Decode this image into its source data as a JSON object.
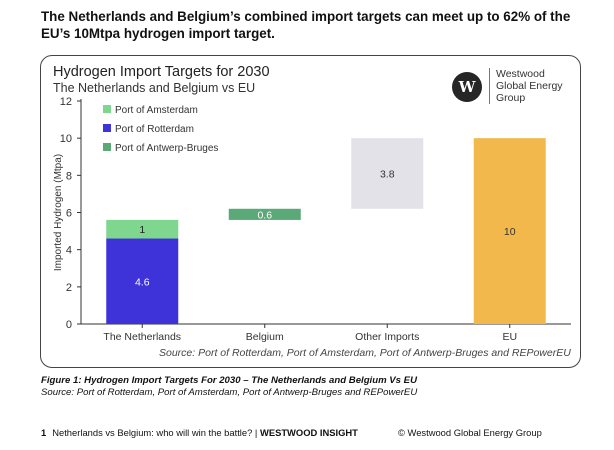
{
  "headline": "The Netherlands and Belgium’s combined import targets can meet up to 62% of the EU’s 10Mtpa hydrogen import target.",
  "brand": {
    "logo_letter": "W",
    "name_line1": "Westwood",
    "name_line2": "Global Energy",
    "name_line3": "Group"
  },
  "chart_data": {
    "type": "bar",
    "stacked": true,
    "title": "Hydrogen Import Targets for 2030",
    "subtitle": "The Netherlands and Belgium vs EU",
    "ylabel": "Imported Hydrogen (Mtpa)",
    "ylim": [
      0,
      12
    ],
    "yticks": [
      0,
      2,
      4,
      6,
      8,
      10,
      12
    ],
    "categories": [
      "The Netherlands",
      "Belgium",
      "Other Imports",
      "EU"
    ],
    "legend_position": "top-left",
    "legend": [
      {
        "label": "Port of Amsterdam",
        "color": "#7ed68f"
      },
      {
        "label": "Port of Rotterdam",
        "color": "#3d33d8"
      },
      {
        "label": "Port of Antwerp-Bruges",
        "color": "#5aa977"
      }
    ],
    "bars": [
      {
        "category": "The Netherlands",
        "base": 0,
        "value": 4.6,
        "label": "4.6",
        "color": "#3d33d8",
        "label_color": "#ffffff"
      },
      {
        "category": "The Netherlands",
        "base": 4.6,
        "value": 1,
        "label": "1",
        "color": "#7ed68f",
        "label_color": "#222222"
      },
      {
        "category": "Belgium",
        "base": 5.6,
        "value": 0.6,
        "label": "0.6",
        "color": "#5aa977",
        "label_color": "#ffffff"
      },
      {
        "category": "Other Imports",
        "base": 6.2,
        "value": 3.8,
        "label": "3.8",
        "color": "#e3e2e8",
        "label_color": "#333333"
      },
      {
        "category": "EU",
        "base": 0,
        "value": 10,
        "label": "10",
        "color": "#f2b84b",
        "label_color": "#333333"
      }
    ],
    "source": "Source: Port of Rotterdam, Port of Amsterdam, Port of Antwerp-Bruges and REPowerEU"
  },
  "caption": {
    "line1": "Figure 1: Hydrogen Import Targets For 2030 – The Netherlands and Belgium Vs EU",
    "line2": "Source: Port of Rotterdam, Port of Amsterdam, Port of Antwerp-Bruges and REPowerEU"
  },
  "footer": {
    "page_number": "1",
    "left_text": "Netherlands vs Belgium: who will win the battle? | ",
    "left_bold": "WESTWOOD INSIGHT",
    "right_text": "© Westwood Global Energy Group"
  }
}
